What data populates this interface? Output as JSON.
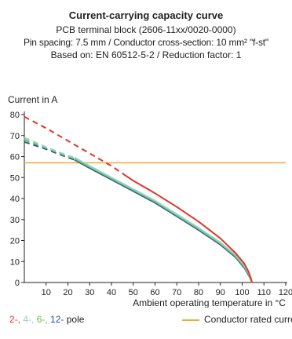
{
  "chart_data": {
    "type": "line",
    "title": "Current-carrying capacity curve",
    "subtitle_lines": [
      "PCB terminal block (2606-11xx/0020-0000)",
      "Pin spacing: 7.5 mm / Conductor cross-section: 10 mm² \"f-st\"",
      "Based on: EN 60512-5-2 / Reduction factor: 1"
    ],
    "ylabel": "Current in A",
    "xlabel": "Ambient operating temperature in °C",
    "xlim": [
      0,
      120
    ],
    "ylim": [
      0,
      80
    ],
    "x_ticks": [
      "10",
      "20",
      "30",
      "40",
      "50",
      "60",
      "70",
      "80",
      "90",
      "100",
      "110",
      "120"
    ],
    "y_ticks": [
      "0",
      "10",
      "20",
      "30",
      "40",
      "50",
      "60",
      "70",
      "80"
    ],
    "grid": false,
    "legend_placement": "bottom",
    "series": [
      {
        "name": "2-",
        "color": "#e0352b",
        "dashed": [
          [
            0,
            79
          ],
          [
            10,
            73.5
          ],
          [
            20,
            67.5
          ],
          [
            30,
            61.5
          ],
          [
            40,
            55.5
          ],
          [
            45,
            52
          ]
        ],
        "solid": [
          [
            45,
            52
          ],
          [
            50,
            48.5
          ],
          [
            60,
            42.5
          ],
          [
            70,
            36
          ],
          [
            80,
            29
          ],
          [
            90,
            21
          ],
          [
            97,
            14
          ],
          [
            101,
            9
          ],
          [
            103,
            5
          ],
          [
            104,
            2
          ],
          [
            104.5,
            0
          ]
        ]
      },
      {
        "name": "4-",
        "color": "#8ed1cc",
        "dashed": [
          [
            0,
            69
          ],
          [
            10,
            64.5
          ],
          [
            20,
            60.5
          ],
          [
            23,
            59.5
          ]
        ],
        "solid": [
          [
            23,
            59.5
          ],
          [
            30,
            55.5
          ],
          [
            40,
            50
          ],
          [
            50,
            44.5
          ],
          [
            60,
            39
          ],
          [
            70,
            32.5
          ],
          [
            80,
            26
          ],
          [
            90,
            19
          ],
          [
            97,
            13
          ],
          [
            101,
            8
          ],
          [
            103,
            4.5
          ],
          [
            104,
            2
          ],
          [
            104.5,
            0
          ]
        ]
      },
      {
        "name": "6-",
        "color": "#6cc04a",
        "dashed": [
          [
            0,
            68
          ],
          [
            10,
            64
          ],
          [
            20,
            60
          ],
          [
            23,
            59
          ]
        ],
        "solid": [
          [
            23,
            59
          ],
          [
            30,
            55
          ],
          [
            40,
            49.5
          ],
          [
            50,
            44
          ],
          [
            60,
            38.5
          ],
          [
            70,
            32
          ],
          [
            80,
            25.5
          ],
          [
            90,
            18.5
          ],
          [
            97,
            12.5
          ],
          [
            101,
            7.5
          ],
          [
            103,
            4
          ],
          [
            104,
            1.5
          ],
          [
            104.5,
            0
          ]
        ]
      },
      {
        "name": "12-",
        "color": "#2d4e9a",
        "dashed": [
          [
            0,
            67
          ],
          [
            10,
            63.5
          ],
          [
            20,
            59.5
          ],
          [
            23,
            58.5
          ]
        ],
        "solid": [
          [
            23,
            58.5
          ],
          [
            30,
            54.5
          ],
          [
            40,
            49
          ],
          [
            50,
            43.5
          ],
          [
            60,
            38
          ],
          [
            70,
            31.5
          ],
          [
            80,
            25
          ],
          [
            90,
            18
          ],
          [
            97,
            12
          ],
          [
            101,
            7
          ],
          [
            103,
            3.5
          ],
          [
            104,
            1.5
          ],
          [
            104.5,
            0
          ]
        ]
      }
    ],
    "reference_line": {
      "name": "Conductor rated current",
      "value": 57,
      "color": "#f2a93b"
    },
    "legend_suffix": "pole"
  }
}
